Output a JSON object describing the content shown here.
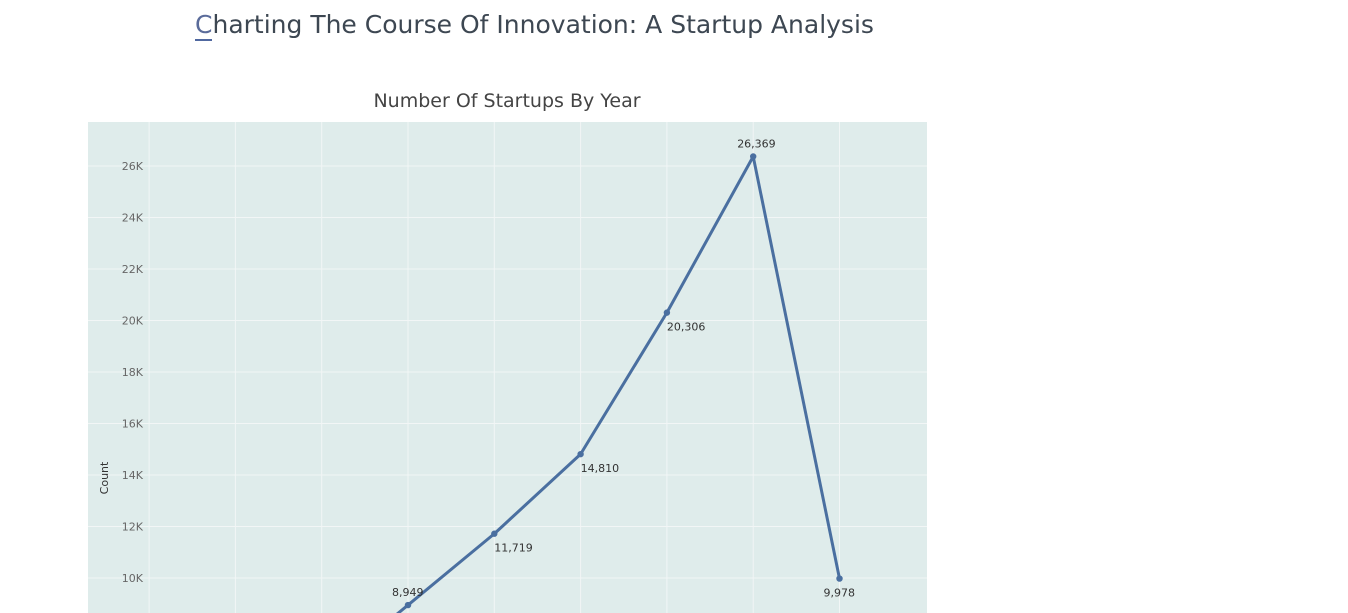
{
  "page": {
    "title_first": "C",
    "title_rest": "harting The Course Of Innovation: A Startup Analysis"
  },
  "chart_data": {
    "type": "line",
    "title": "Number Of Startups By Year",
    "xlabel": "",
    "ylabel": "Count",
    "ylim": [
      9000,
      27400
    ],
    "yticks": [
      10000,
      12000,
      14000,
      16000,
      18000,
      20000,
      22000,
      24000,
      26000
    ],
    "ytick_labels": [
      "10K",
      "12K",
      "14K",
      "16K",
      "18K",
      "20K",
      "22K",
      "24K",
      "26K"
    ],
    "grid": true,
    "series": [
      {
        "values": [
          8949,
          11719,
          14810,
          20306,
          26369,
          9978
        ],
        "labels": [
          "8,949",
          "11,719",
          "14,810",
          "20,306",
          "26,369",
          "9,978"
        ],
        "label_position": [
          "above",
          "below",
          "below",
          "below",
          "above",
          "below"
        ]
      }
    ],
    "colors": {
      "line": "#4a6fa0",
      "plot_background": "#dfeceb",
      "gridline": "#f2f6f6"
    }
  }
}
